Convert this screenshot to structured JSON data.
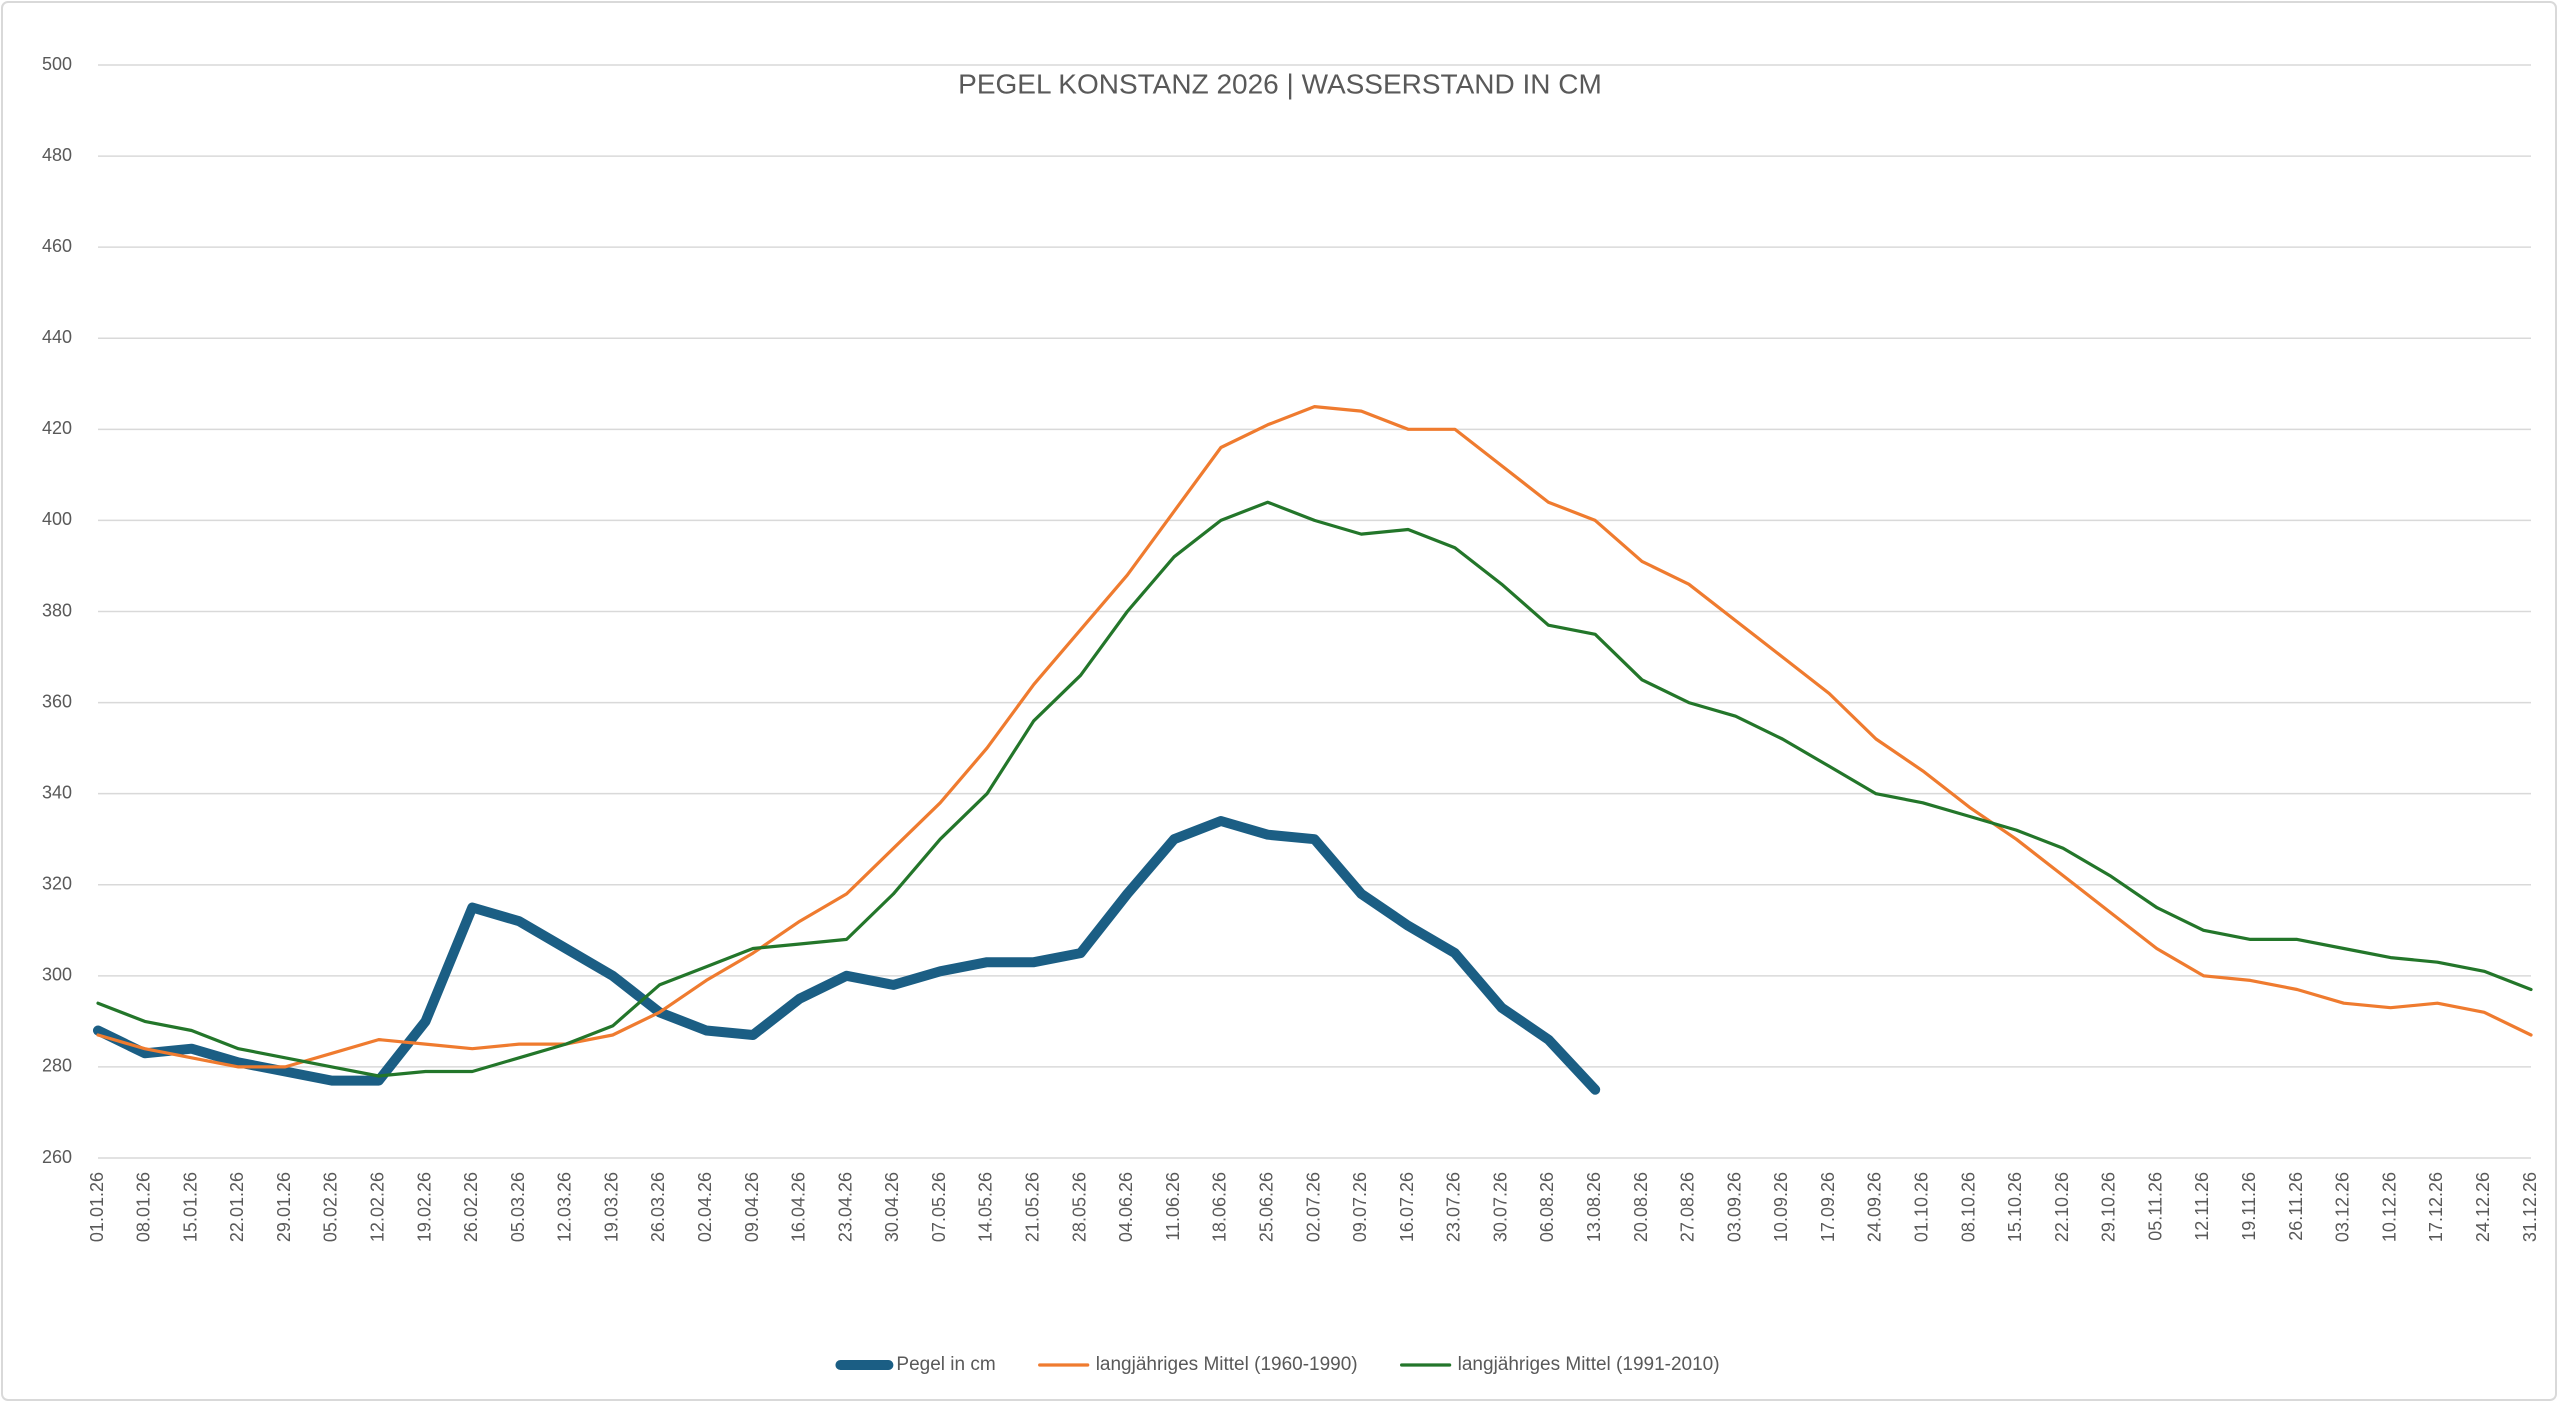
{
  "chart_data": {
    "type": "line",
    "title": "PEGEL KONSTANZ 2026 | WASSERSTAND IN CM",
    "categories": [
      "01.01.26",
      "08.01.26",
      "15.01.26",
      "22.01.26",
      "29.01.26",
      "05.02.26",
      "12.02.26",
      "19.02.26",
      "26.02.26",
      "05.03.26",
      "12.03.26",
      "19.03.26",
      "26.03.26",
      "02.04.26",
      "09.04.26",
      "16.04.26",
      "23.04.26",
      "30.04.26",
      "07.05.26",
      "14.05.26",
      "21.05.26",
      "28.05.26",
      "04.06.26",
      "11.06.26",
      "18.06.26",
      "25.06.26",
      "02.07.26",
      "09.07.26",
      "16.07.26",
      "23.07.26",
      "30.07.26",
      "06.08.26",
      "13.08.26",
      "20.08.26",
      "27.08.26",
      "03.09.26",
      "10.09.26",
      "17.09.26",
      "24.09.26",
      "01.10.26",
      "08.10.26",
      "15.10.26",
      "22.10.26",
      "29.10.26",
      "05.11.26",
      "12.11.26",
      "19.11.26",
      "26.11.26",
      "03.12.26",
      "10.12.26",
      "17.12.26",
      "24.12.26",
      "31.12.26"
    ],
    "series": [
      {
        "name": "Pegel in cm",
        "color": "#1b5e84",
        "width": "thick",
        "values": [
          288,
          283,
          284,
          281,
          279,
          277,
          277,
          290,
          315,
          312,
          306,
          300,
          292,
          288,
          287,
          295,
          300,
          298,
          301,
          303,
          303,
          305,
          318,
          330,
          334,
          331,
          330,
          318,
          311,
          305,
          293,
          286,
          275,
          null,
          null,
          null,
          null,
          null,
          null,
          null,
          null,
          null,
          null,
          null,
          null,
          null,
          null,
          null,
          null,
          null,
          null,
          null,
          null
        ]
      },
      {
        "name": "langjähriges Mittel (1960-1990)",
        "color": "#ef7b2f",
        "width": "thin",
        "values": [
          287,
          284,
          282,
          280,
          280,
          283,
          286,
          285,
          284,
          285,
          285,
          287,
          292,
          299,
          305,
          312,
          318,
          328,
          338,
          350,
          364,
          376,
          388,
          402,
          416,
          421,
          425,
          424,
          420,
          420,
          412,
          404,
          400,
          391,
          386,
          378,
          370,
          362,
          352,
          345,
          337,
          330,
          322,
          314,
          306,
          300,
          299,
          297,
          294,
          293,
          294,
          292,
          287
        ]
      },
      {
        "name": "langjähriges Mittel (1991-2010)",
        "color": "#23762a",
        "width": "thin",
        "values": [
          294,
          290,
          288,
          284,
          282,
          280,
          278,
          279,
          279,
          282,
          285,
          289,
          298,
          302,
          306,
          307,
          308,
          318,
          330,
          340,
          356,
          366,
          380,
          392,
          400,
          404,
          400,
          397,
          398,
          394,
          386,
          377,
          375,
          365,
          360,
          357,
          352,
          346,
          340,
          338,
          335,
          332,
          328,
          322,
          315,
          310,
          308,
          308,
          306,
          304,
          303,
          301,
          297
        ]
      }
    ],
    "ylim": [
      260,
      500
    ],
    "yticks": [
      260,
      280,
      300,
      320,
      340,
      360,
      380,
      400,
      420,
      440,
      460,
      480,
      500
    ],
    "grid": true,
    "legend": "bottom"
  }
}
